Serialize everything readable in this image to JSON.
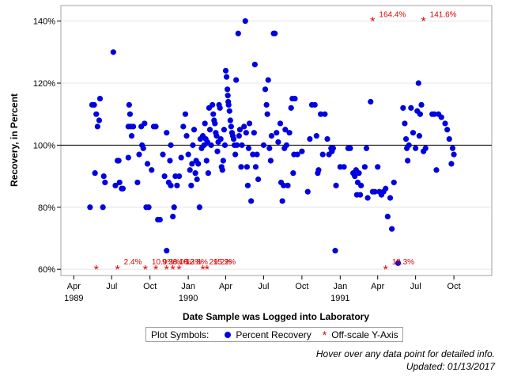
{
  "chart_data": {
    "type": "scatter",
    "xlabel": "Date Sample was Logged into Laboratory",
    "ylabel": "Recovery, in Percent",
    "x_axis": "date (months)",
    "xlim": [
      "1989-03-01",
      "1991-12-31"
    ],
    "ylim": [
      58,
      145
    ],
    "y_ticks": [
      "60%",
      "80%",
      "100%",
      "120%",
      "140%"
    ],
    "y_tick_values": [
      60,
      80,
      100,
      120,
      140
    ],
    "x_ticks": [
      {
        "label": "Apr",
        "year": "1989",
        "date": "1989-04-01"
      },
      {
        "label": "Jul",
        "year": "",
        "date": "1989-07-01"
      },
      {
        "label": "Oct",
        "year": "",
        "date": "1989-10-01"
      },
      {
        "label": "Jan",
        "year": "1990",
        "date": "1990-01-01"
      },
      {
        "label": "Apr",
        "year": "",
        "date": "1990-04-01"
      },
      {
        "label": "Jul",
        "year": "",
        "date": "1990-07-01"
      },
      {
        "label": "Oct",
        "year": "",
        "date": "1990-10-01"
      },
      {
        "label": "Jan",
        "year": "1991",
        "date": "1991-01-01"
      },
      {
        "label": "Apr",
        "year": "",
        "date": "1991-04-01"
      },
      {
        "label": "Jul",
        "year": "",
        "date": "1991-07-01"
      },
      {
        "label": "Oct",
        "year": "",
        "date": "1991-10-01"
      }
    ],
    "reference_line": 100,
    "grid": "horizontal",
    "legend_position": "bottom",
    "series": [
      {
        "name": "Percent Recovery",
        "color": "#0000e0",
        "points": [
          [
            "1989-05-15",
            113
          ],
          [
            "1989-05-20",
            113
          ],
          [
            "1989-05-10",
            80
          ],
          [
            "1989-05-22",
            91
          ],
          [
            "1989-05-25",
            110
          ],
          [
            "1989-05-28",
            106
          ],
          [
            "1989-06-01",
            108
          ],
          [
            "1989-06-03",
            115
          ],
          [
            "1989-06-10",
            80
          ],
          [
            "1989-06-12",
            90
          ],
          [
            "1989-06-15",
            88
          ],
          [
            "1989-07-05",
            130
          ],
          [
            "1989-07-10",
            87
          ],
          [
            "1989-07-15",
            95
          ],
          [
            "1989-07-18",
            95
          ],
          [
            "1989-07-20",
            88
          ],
          [
            "1989-07-25",
            86
          ],
          [
            "1989-07-28",
            86
          ],
          [
            "1989-08-10",
            106
          ],
          [
            "1989-08-12",
            113
          ],
          [
            "1989-08-14",
            110
          ],
          [
            "1989-08-16",
            106
          ],
          [
            "1989-08-18",
            103
          ],
          [
            "1989-08-10",
            96
          ],
          [
            "1989-08-22",
            106
          ],
          [
            "1989-09-01",
            88
          ],
          [
            "1989-09-05",
            97
          ],
          [
            "1989-09-10",
            106
          ],
          [
            "1989-09-12",
            100
          ],
          [
            "1989-09-15",
            99
          ],
          [
            "1989-09-18",
            107
          ],
          [
            "1989-09-22",
            80
          ],
          [
            "1989-09-25",
            94
          ],
          [
            "1989-09-28",
            80
          ],
          [
            "1989-10-05",
            92
          ],
          [
            "1989-10-10",
            106
          ],
          [
            "1989-10-15",
            106
          ],
          [
            "1989-10-20",
            76
          ],
          [
            "1989-10-25",
            76
          ],
          [
            "1989-11-01",
            97
          ],
          [
            "1989-11-05",
            90
          ],
          [
            "1989-11-10",
            104
          ],
          [
            "1989-11-10",
            66
          ],
          [
            "1989-11-15",
            88
          ],
          [
            "1989-11-18",
            95
          ],
          [
            "1989-11-20",
            100
          ],
          [
            "1989-11-20",
            87
          ],
          [
            "1989-11-25",
            77
          ],
          [
            "1989-11-28",
            80
          ],
          [
            "1989-12-01",
            90
          ],
          [
            "1989-12-05",
            87
          ],
          [
            "1989-12-10",
            90
          ],
          [
            "1989-12-15",
            96
          ],
          [
            "1989-12-20",
            106
          ],
          [
            "1989-12-25",
            110
          ],
          [
            "1989-12-28",
            103
          ],
          [
            "1990-01-01",
            97
          ],
          [
            "1990-01-05",
            92
          ],
          [
            "1990-01-08",
            87
          ],
          [
            "1990-01-10",
            94
          ],
          [
            "1990-01-12",
            100
          ],
          [
            "1990-01-15",
            105
          ],
          [
            "1990-01-18",
            91
          ],
          [
            "1990-01-20",
            95
          ],
          [
            "1990-01-22",
            89
          ],
          [
            "1990-01-25",
            94
          ],
          [
            "1990-01-28",
            80
          ],
          [
            "1990-01-30",
            102
          ],
          [
            "1990-02-02",
            99
          ],
          [
            "1990-02-05",
            103
          ],
          [
            "1990-02-08",
            100
          ],
          [
            "1990-02-10",
            107
          ],
          [
            "1990-02-12",
            102
          ],
          [
            "1990-02-14",
            95
          ],
          [
            "1990-02-16",
            101
          ],
          [
            "1990-02-18",
            91
          ],
          [
            "1990-02-20",
            112
          ],
          [
            "1990-02-22",
            105
          ],
          [
            "1990-02-25",
            100
          ],
          [
            "1990-02-28",
            113
          ],
          [
            "1990-03-02",
            110
          ],
          [
            "1990-03-04",
            108
          ],
          [
            "1990-03-06",
            107
          ],
          [
            "1990-03-08",
            104
          ],
          [
            "1990-03-10",
            103
          ],
          [
            "1990-03-12",
            98
          ],
          [
            "1990-03-14",
            101
          ],
          [
            "1990-03-16",
            113
          ],
          [
            "1990-03-18",
            112
          ],
          [
            "1990-03-20",
            102
          ],
          [
            "1990-03-22",
            93
          ],
          [
            "1990-03-24",
            92
          ],
          [
            "1990-03-26",
            95
          ],
          [
            "1990-03-28",
            105
          ],
          [
            "1990-03-30",
            100
          ],
          [
            "1990-04-01",
            124
          ],
          [
            "1990-04-03",
            122
          ],
          [
            "1990-04-05",
            118
          ],
          [
            "1990-04-06",
            116
          ],
          [
            "1990-04-07",
            114
          ],
          [
            "1990-04-08",
            113
          ],
          [
            "1990-04-10",
            111
          ],
          [
            "1990-04-12",
            108
          ],
          [
            "1990-04-14",
            106
          ],
          [
            "1990-04-16",
            104
          ],
          [
            "1990-04-18",
            103
          ],
          [
            "1990-04-20",
            102
          ],
          [
            "1990-04-22",
            100
          ],
          [
            "1990-04-24",
            97
          ],
          [
            "1990-04-26",
            121
          ],
          [
            "1990-04-28",
            100
          ],
          [
            "1990-05-01",
            136
          ],
          [
            "1990-05-03",
            103
          ],
          [
            "1990-05-05",
            105
          ],
          [
            "1990-05-08",
            93
          ],
          [
            "1990-05-10",
            100
          ],
          [
            "1990-05-15",
            106
          ],
          [
            "1990-05-18",
            140
          ],
          [
            "1990-05-20",
            104
          ],
          [
            "1990-05-22",
            93
          ],
          [
            "1990-05-24",
            87
          ],
          [
            "1990-05-26",
            99
          ],
          [
            "1990-05-28",
            107
          ],
          [
            "1990-06-01",
            82
          ],
          [
            "1990-06-05",
            97
          ],
          [
            "1990-06-08",
            104
          ],
          [
            "1990-06-10",
            126
          ],
          [
            "1990-06-12",
            93
          ],
          [
            "1990-06-15",
            97
          ],
          [
            "1990-06-18",
            89
          ],
          [
            "1990-07-01",
            100
          ],
          [
            "1990-07-05",
            118
          ],
          [
            "1990-07-08",
            113
          ],
          [
            "1990-07-10",
            110
          ],
          [
            "1990-07-12",
            121
          ],
          [
            "1990-07-15",
            99
          ],
          [
            "1990-07-18",
            95
          ],
          [
            "1990-07-20",
            103
          ],
          [
            "1990-07-25",
            136
          ],
          [
            "1990-07-28",
            136
          ],
          [
            "1990-08-01",
            104
          ],
          [
            "1990-08-05",
            101
          ],
          [
            "1990-08-10",
            107
          ],
          [
            "1990-08-12",
            88
          ],
          [
            "1990-08-15",
            82
          ],
          [
            "1990-08-18",
            87
          ],
          [
            "1990-08-20",
            99
          ],
          [
            "1990-08-22",
            105
          ],
          [
            "1990-08-25",
            100
          ],
          [
            "1990-08-28",
            87
          ],
          [
            "1990-09-01",
            104
          ],
          [
            "1990-09-05",
            112
          ],
          [
            "1990-09-08",
            115
          ],
          [
            "1990-09-10",
            91
          ],
          [
            "1990-09-12",
            97
          ],
          [
            "1990-09-14",
            115
          ],
          [
            "1990-09-20",
            97
          ],
          [
            "1990-10-01",
            98
          ],
          [
            "1990-10-15",
            85
          ],
          [
            "1990-10-20",
            102
          ],
          [
            "1990-10-25",
            113
          ],
          [
            "1990-11-01",
            113
          ],
          [
            "1990-11-05",
            103
          ],
          [
            "1990-11-08",
            91
          ],
          [
            "1990-11-10",
            92
          ],
          [
            "1990-11-15",
            110
          ],
          [
            "1990-11-20",
            97
          ],
          [
            "1990-11-25",
            110
          ],
          [
            "1990-12-01",
            102
          ],
          [
            "1990-12-05",
            97
          ],
          [
            "1990-12-10",
            99
          ],
          [
            "1990-12-12",
            98
          ],
          [
            "1990-12-15",
            99
          ],
          [
            "1990-12-20",
            66
          ],
          [
            "1990-12-22",
            87
          ],
          [
            "1991-01-01",
            93
          ],
          [
            "1991-01-10",
            93
          ],
          [
            "1991-01-20",
            99
          ],
          [
            "1991-01-25",
            99
          ],
          [
            "1991-02-01",
            91
          ],
          [
            "1991-02-05",
            90
          ],
          [
            "1991-02-08",
            92
          ],
          [
            "1991-02-10",
            84
          ],
          [
            "1991-02-12",
            88
          ],
          [
            "1991-02-15",
            91
          ],
          [
            "1991-02-18",
            84
          ],
          [
            "1991-02-20",
            87
          ],
          [
            "1991-03-01",
            93
          ],
          [
            "1991-03-05",
            99
          ],
          [
            "1991-03-08",
            83
          ],
          [
            "1991-03-15",
            114
          ],
          [
            "1991-03-20",
            85
          ],
          [
            "1991-03-25",
            85
          ],
          [
            "1991-04-01",
            93
          ],
          [
            "1991-04-05",
            85
          ],
          [
            "1991-04-10",
            84
          ],
          [
            "1991-04-15",
            85
          ],
          [
            "1991-04-20",
            86
          ],
          [
            "1991-04-25",
            77
          ],
          [
            "1991-05-01",
            83
          ],
          [
            "1991-05-05",
            73
          ],
          [
            "1991-05-10",
            88
          ],
          [
            "1991-05-20",
            62
          ],
          [
            "1991-06-01",
            112
          ],
          [
            "1991-06-05",
            107
          ],
          [
            "1991-06-08",
            102
          ],
          [
            "1991-06-10",
            99
          ],
          [
            "1991-06-12",
            95
          ],
          [
            "1991-06-15",
            100
          ],
          [
            "1991-06-20",
            112
          ],
          [
            "1991-06-25",
            104
          ],
          [
            "1991-07-01",
            99
          ],
          [
            "1991-07-05",
            111
          ],
          [
            "1991-07-08",
            120
          ],
          [
            "1991-07-10",
            103
          ],
          [
            "1991-07-12",
            110
          ],
          [
            "1991-07-15",
            113
          ],
          [
            "1991-07-20",
            98
          ],
          [
            "1991-07-25",
            99
          ],
          [
            "1991-08-10",
            110
          ],
          [
            "1991-08-15",
            110
          ],
          [
            "1991-08-20",
            92
          ],
          [
            "1991-08-25",
            110
          ],
          [
            "1991-09-01",
            109
          ],
          [
            "1991-09-10",
            107
          ],
          [
            "1991-09-15",
            105
          ],
          [
            "1991-09-20",
            102
          ],
          [
            "1991-09-25",
            94
          ],
          [
            "1991-09-28",
            99
          ],
          [
            "1991-10-01",
            97
          ]
        ]
      },
      {
        "name": "Off-scale Y-Axis",
        "color": "#e00000",
        "marker": "asterisk",
        "points": [
          {
            "x": "1989-05-25",
            "label": ""
          },
          {
            "x": "1989-07-15",
            "label": "2.4%"
          },
          {
            "x": "1989-09-20",
            "label": "10.9%"
          },
          {
            "x": "1989-10-15",
            "label": "9.3%"
          },
          {
            "x": "1989-11-10",
            "label": "8.0%"
          },
          {
            "x": "1989-11-25",
            "label": "16.3%"
          },
          {
            "x": "1989-12-10",
            "label": "12.8%"
          },
          {
            "x": "1990-02-05",
            "label": "29.2%"
          },
          {
            "x": "1990-02-15",
            "label": "15.2%"
          },
          {
            "x": "1991-03-20",
            "label": "164.4%",
            "high": true
          },
          {
            "x": "1991-07-20",
            "label": "141.6%",
            "high": true
          },
          {
            "x": "1991-04-20",
            "label": "18.3%"
          }
        ]
      }
    ]
  },
  "legend": {
    "title": "Plot Symbols:",
    "item1": "Percent Recovery",
    "item2": "Off-scale Y-Axis",
    "item2_symbol": "*"
  },
  "notes": {
    "hover": "Hover over any data point for detailed info.",
    "updated": "Updated: 01/13/2017"
  }
}
